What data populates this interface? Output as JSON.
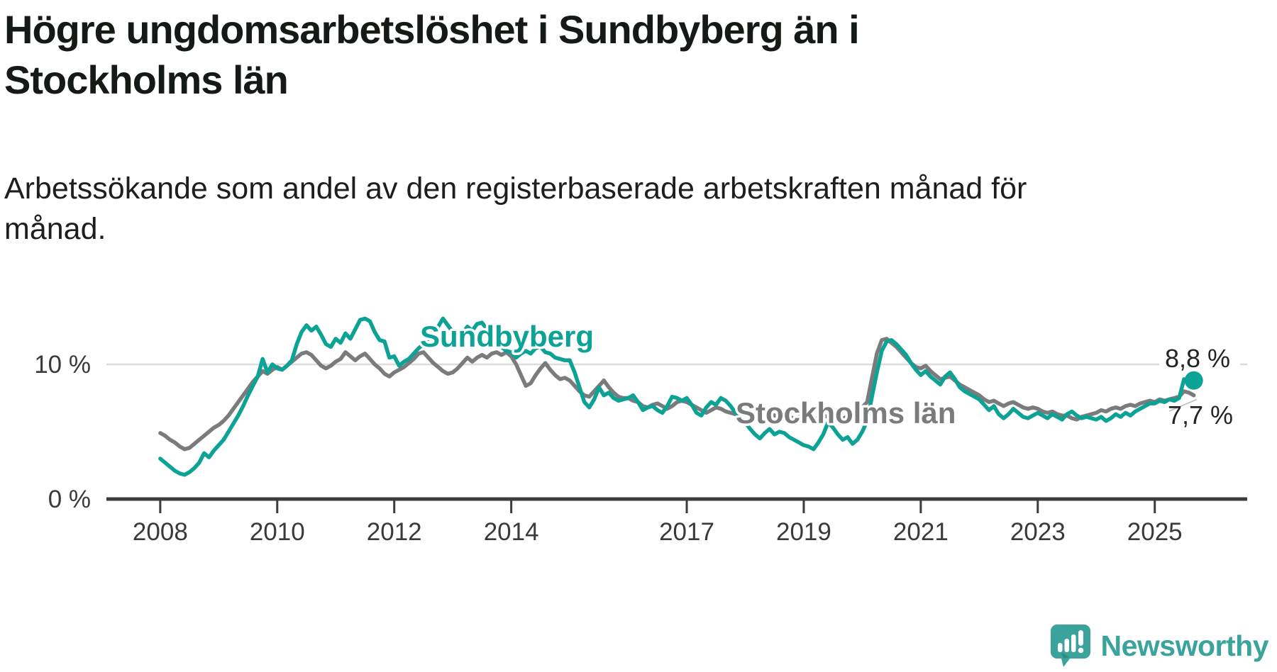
{
  "title": {
    "line1": "Högre ungdomsarbetslöshet i Sundbyberg än i",
    "line2": "Stockholms län"
  },
  "subtitle": {
    "line1": "Arbetssökande som andel av den registerbaserade arbetskraften månad för",
    "line2": "månad."
  },
  "chart_data": {
    "type": "line",
    "x_unit": "year-month",
    "y_unit": "%",
    "x_start_year": 2008,
    "x_start_month": 1,
    "xlim": [
      2007.08,
      2026.58
    ],
    "ylim": [
      0,
      14.5
    ],
    "grid": "horizontal-at-10-only",
    "legend_position": "inline-labels",
    "y_ticks": [
      {
        "value": 0,
        "label": "0 %"
      },
      {
        "value": 10,
        "label": "10 %"
      }
    ],
    "x_ticks": [
      {
        "year": 2008,
        "label": "2008"
      },
      {
        "year": 2010,
        "label": "2010"
      },
      {
        "year": 2012,
        "label": "2012"
      },
      {
        "year": 2014,
        "label": "2014"
      },
      {
        "year": 2017,
        "label": "2017"
      },
      {
        "year": 2019,
        "label": "2019"
      },
      {
        "year": 2021,
        "label": "2021"
      },
      {
        "year": 2023,
        "label": "2023"
      },
      {
        "year": 2025,
        "label": "2025"
      }
    ],
    "series": [
      {
        "name": "Stockholms län",
        "color": "#7a7b7d",
        "end_label": "7,7 %",
        "end_value": 7.7,
        "end_dot": false,
        "values": [
          4.9,
          4.7,
          4.4,
          4.2,
          3.9,
          3.7,
          3.8,
          4.1,
          4.4,
          4.7,
          5.0,
          5.3,
          5.5,
          5.8,
          6.2,
          6.7,
          7.2,
          7.7,
          8.2,
          8.7,
          9.1,
          9.5,
          9.3,
          9.6,
          9.8,
          9.6,
          9.9,
          10.2,
          10.5,
          10.8,
          10.9,
          10.7,
          10.3,
          9.9,
          9.7,
          9.9,
          10.2,
          10.4,
          10.9,
          10.6,
          10.3,
          10.6,
          10.8,
          10.4,
          10.0,
          9.7,
          9.3,
          9.1,
          9.4,
          9.6,
          9.8,
          10.1,
          10.4,
          10.8,
          10.9,
          10.5,
          10.1,
          9.8,
          9.5,
          9.3,
          9.4,
          9.7,
          10.1,
          10.5,
          10.2,
          10.5,
          10.7,
          10.5,
          10.8,
          10.9,
          10.7,
          10.9,
          10.6,
          10.0,
          9.2,
          8.4,
          8.6,
          9.2,
          9.7,
          10.1,
          9.6,
          9.2,
          8.9,
          9.0,
          8.8,
          8.4,
          8.0,
          7.7,
          7.6,
          8.0,
          8.4,
          8.8,
          8.3,
          7.9,
          7.6,
          7.5,
          7.5,
          7.3,
          7.2,
          6.9,
          6.8,
          7.0,
          7.1,
          6.9,
          6.7,
          6.9,
          7.2,
          7.3,
          7.2,
          7.0,
          6.8,
          6.6,
          6.4,
          6.6,
          6.8,
          6.7,
          6.5,
          6.4,
          6.3,
          6.4,
          6.6,
          6.4,
          6.2,
          6.3,
          6.5,
          6.4,
          6.2,
          6.1,
          6.2,
          6.1,
          6.0,
          6.1,
          6.1,
          6.0,
          5.9,
          6.0,
          6.2,
          6.1,
          6.2,
          6.1,
          6.0,
          6.1,
          6.3,
          6.5,
          6.8,
          7.2,
          9.0,
          10.8,
          11.8,
          11.9,
          11.6,
          11.3,
          10.9,
          10.5,
          10.1,
          9.8,
          9.7,
          9.9,
          9.5,
          9.2,
          8.9,
          9.0,
          9.1,
          8.8,
          8.5,
          8.3,
          8.1,
          7.9,
          7.7,
          7.4,
          7.2,
          7.3,
          7.1,
          6.9,
          7.1,
          7.2,
          7.0,
          6.8,
          6.7,
          6.8,
          6.7,
          6.5,
          6.4,
          6.5,
          6.3,
          6.2,
          6.2,
          6.0,
          5.9,
          6.1,
          6.2,
          6.3,
          6.4,
          6.6,
          6.5,
          6.7,
          6.8,
          6.7,
          6.9,
          7.0,
          6.9,
          7.1,
          7.2,
          7.3,
          7.2,
          7.4,
          7.3,
          7.4,
          7.5,
          7.6,
          8.0,
          7.9,
          7.7
        ]
      },
      {
        "name": "Sundbyberg",
        "color": "#0ca295",
        "end_label": "8,8 %",
        "end_value": 8.8,
        "end_dot": true,
        "values": [
          3.0,
          2.7,
          2.4,
          2.1,
          1.9,
          1.8,
          2.0,
          2.3,
          2.7,
          3.4,
          3.1,
          3.6,
          4.0,
          4.4,
          5.0,
          5.6,
          6.2,
          6.9,
          7.7,
          8.4,
          9.1,
          10.4,
          9.4,
          10.0,
          9.7,
          9.6,
          9.9,
          10.3,
          11.5,
          12.4,
          12.9,
          12.5,
          12.8,
          12.2,
          11.5,
          11.3,
          11.9,
          11.6,
          12.3,
          11.9,
          12.6,
          13.3,
          13.4,
          13.2,
          12.4,
          11.8,
          11.7,
          10.5,
          10.6,
          9.9,
          10.2,
          10.4,
          10.8,
          11.2,
          11.5,
          11.9,
          12.4,
          12.8,
          13.4,
          12.9,
          12.4,
          11.9,
          12.3,
          12.8,
          12.5,
          13.0,
          13.1,
          12.6,
          12.1,
          11.7,
          11.3,
          11.0,
          10.9,
          10.5,
          10.8,
          11.0,
          10.8,
          11.2,
          11.3,
          10.9,
          10.8,
          10.5,
          10.4,
          10.3,
          10.3,
          9.4,
          8.3,
          7.2,
          6.8,
          7.4,
          8.3,
          7.7,
          7.9,
          7.5,
          7.3,
          7.4,
          7.5,
          7.7,
          7.2,
          6.6,
          6.8,
          6.9,
          6.6,
          6.4,
          6.9,
          7.6,
          7.5,
          7.3,
          7.5,
          7.0,
          6.4,
          6.2,
          6.8,
          7.2,
          7.0,
          7.5,
          7.3,
          6.9,
          6.4,
          6.0,
          5.7,
          5.2,
          4.8,
          4.5,
          4.9,
          5.2,
          4.8,
          5.0,
          4.9,
          4.6,
          4.4,
          4.2,
          4.0,
          3.9,
          3.7,
          4.2,
          4.8,
          5.7,
          5.3,
          4.8,
          4.4,
          4.6,
          4.1,
          4.4,
          5.0,
          5.8,
          7.6,
          9.4,
          11.0,
          11.7,
          11.8,
          11.5,
          11.1,
          10.7,
          10.1,
          9.6,
          9.2,
          9.5,
          9.1,
          8.8,
          8.5,
          9.1,
          9.4,
          8.9,
          8.3,
          8.0,
          7.8,
          7.6,
          7.4,
          7.0,
          6.6,
          6.9,
          6.3,
          6.0,
          6.3,
          6.7,
          6.4,
          6.1,
          6.0,
          6.2,
          6.4,
          6.2,
          6.0,
          6.3,
          6.1,
          5.9,
          6.3,
          6.5,
          6.2,
          6.0,
          6.1,
          6.0,
          5.9,
          6.1,
          5.8,
          6.0,
          6.3,
          6.1,
          6.4,
          6.2,
          6.5,
          6.7,
          6.9,
          7.1,
          7.1,
          7.3,
          7.2,
          7.4,
          7.3,
          7.5,
          8.9,
          8.6,
          8.8
        ]
      }
    ]
  },
  "colors": {
    "accent_teal": "#0ca295",
    "series_gray": "#7a7b7d",
    "gridline": "#dcdcdc",
    "axis": "#3c3c3c",
    "tick_text": "#3a3a3a",
    "end_label_text": "#242424",
    "logo_teal": "#3aa39b"
  },
  "logo": {
    "text": "Newsworthy"
  }
}
